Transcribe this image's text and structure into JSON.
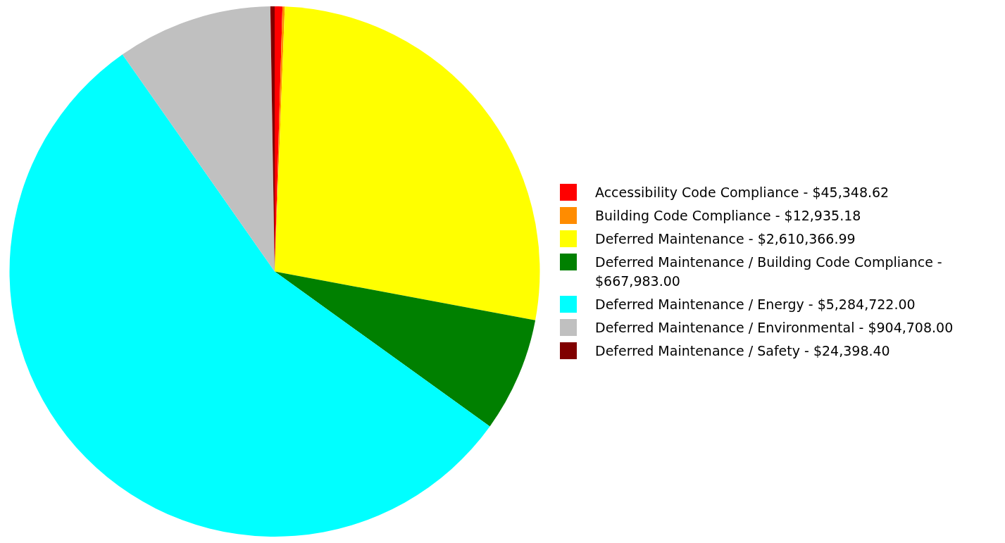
{
  "chart_data": {
    "type": "pie",
    "categories": [
      "Accessibility Code Compliance - $45,348.62",
      "Building Code Compliance - $12,935.18",
      "Deferred Maintenance - $2,610,366.99",
      "Deferred Maintenance / Building Code Compliance - $667,983.00",
      "Deferred Maintenance / Energy - $5,284,722.00",
      "Deferred Maintenance / Environmental - $904,708.00",
      "Deferred Maintenance / Safety - $24,398.40"
    ],
    "values": [
      0.47,
      0.14,
      27.33,
      6.99,
      55.34,
      9.47,
      0.26
    ],
    "colors": [
      "#ff0000",
      "#ff8c00",
      "#ffff00",
      "#008000",
      "#00ffff",
      "#c0c0c0",
      "#800000"
    ],
    "legend": "right"
  }
}
